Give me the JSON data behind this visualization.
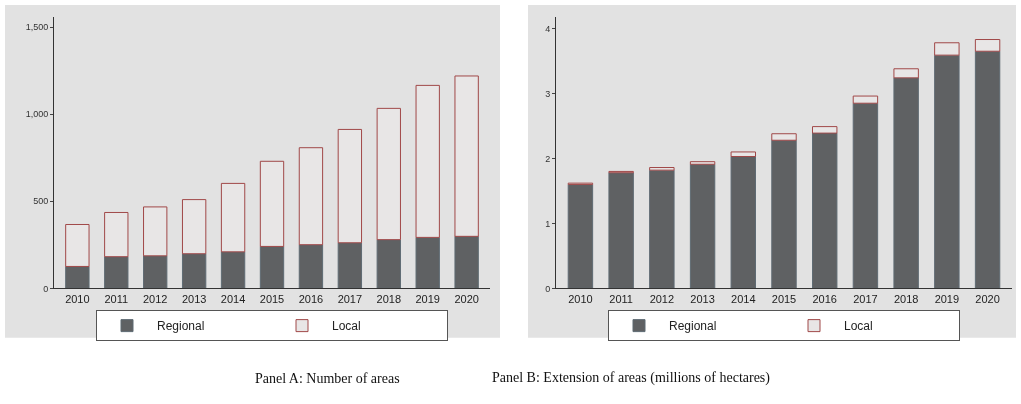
{
  "chart_data": [
    {
      "type": "bar",
      "stacked": true,
      "title": "Panel A: Number of areas",
      "categories": [
        "2010",
        "2011",
        "2012",
        "2013",
        "2014",
        "2015",
        "2016",
        "2017",
        "2018",
        "2019",
        "2020"
      ],
      "series": [
        {
          "name": "Regional",
          "color": "#5f6163",
          "values": [
            126,
            182,
            187,
            199,
            210,
            241,
            251,
            262,
            280,
            293,
            299
          ]
        },
        {
          "name": "Local",
          "color": "#e8e6e6",
          "values": [
            241,
            254,
            281,
            311,
            393,
            489,
            557,
            651,
            754,
            873,
            921
          ]
        }
      ],
      "ylim": [
        0,
        1560
      ],
      "yticks": [
        0,
        500,
        {
          "value": 1000,
          "label": "1,000"
        },
        {
          "value": 1500,
          "label": "1,500"
        }
      ],
      "grid": false,
      "legend": "bottom"
    },
    {
      "type": "bar",
      "stacked": true,
      "title": "Panel B: Extension of areas (millions of hectares)",
      "categories": [
        "2010",
        "2011",
        "2012",
        "2013",
        "2014",
        "2015",
        "2016",
        "2017",
        "2018",
        "2019",
        "2020"
      ],
      "series": [
        {
          "name": "Regional",
          "color": "#5f6163",
          "values": [
            1.6,
            1.78,
            1.82,
            1.91,
            2.03,
            2.28,
            2.39,
            2.85,
            3.24,
            3.59,
            3.65
          ]
        },
        {
          "name": "Local",
          "color": "#e8e6e6",
          "values": [
            0.02,
            0.02,
            0.04,
            0.04,
            0.07,
            0.1,
            0.1,
            0.11,
            0.14,
            0.19,
            0.18
          ]
        }
      ],
      "ylim": [
        0,
        4.18
      ],
      "yticks": [
        0,
        1,
        2,
        3,
        4
      ],
      "grid": false,
      "legend": "bottom"
    }
  ]
}
